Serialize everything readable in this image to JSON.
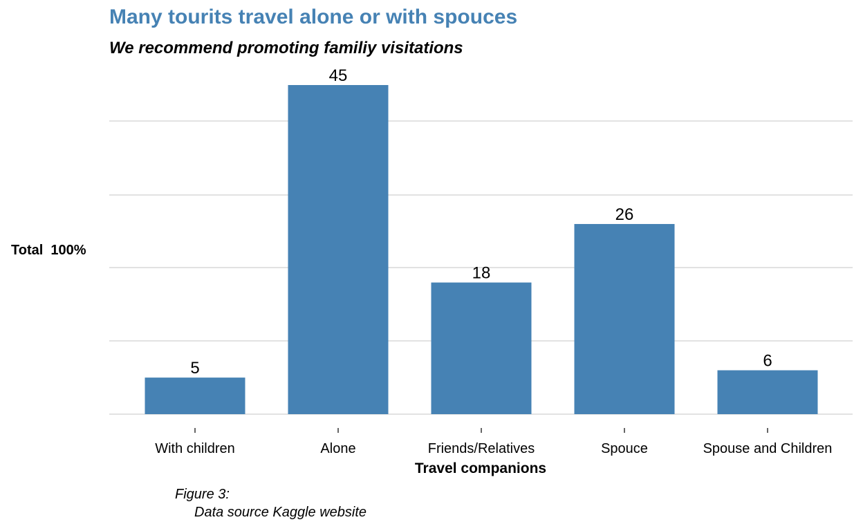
{
  "chart_data": {
    "type": "bar",
    "title": "Many tourits travel alone or with spouces",
    "subtitle": "We recommend promoting familiy visitations",
    "xlabel": "Travel companions",
    "ylabel": "Total  100%",
    "categories": [
      "With children",
      "Alone",
      "Friends/Relatives",
      "Spouce",
      "Spouse and Children"
    ],
    "values": [
      5,
      45,
      18,
      26,
      6
    ],
    "ylim": [
      0,
      45
    ],
    "grid": true,
    "bar_color": "#4682b4",
    "caption": [
      "Figure 3:",
      "Data source Kaggle website"
    ]
  }
}
